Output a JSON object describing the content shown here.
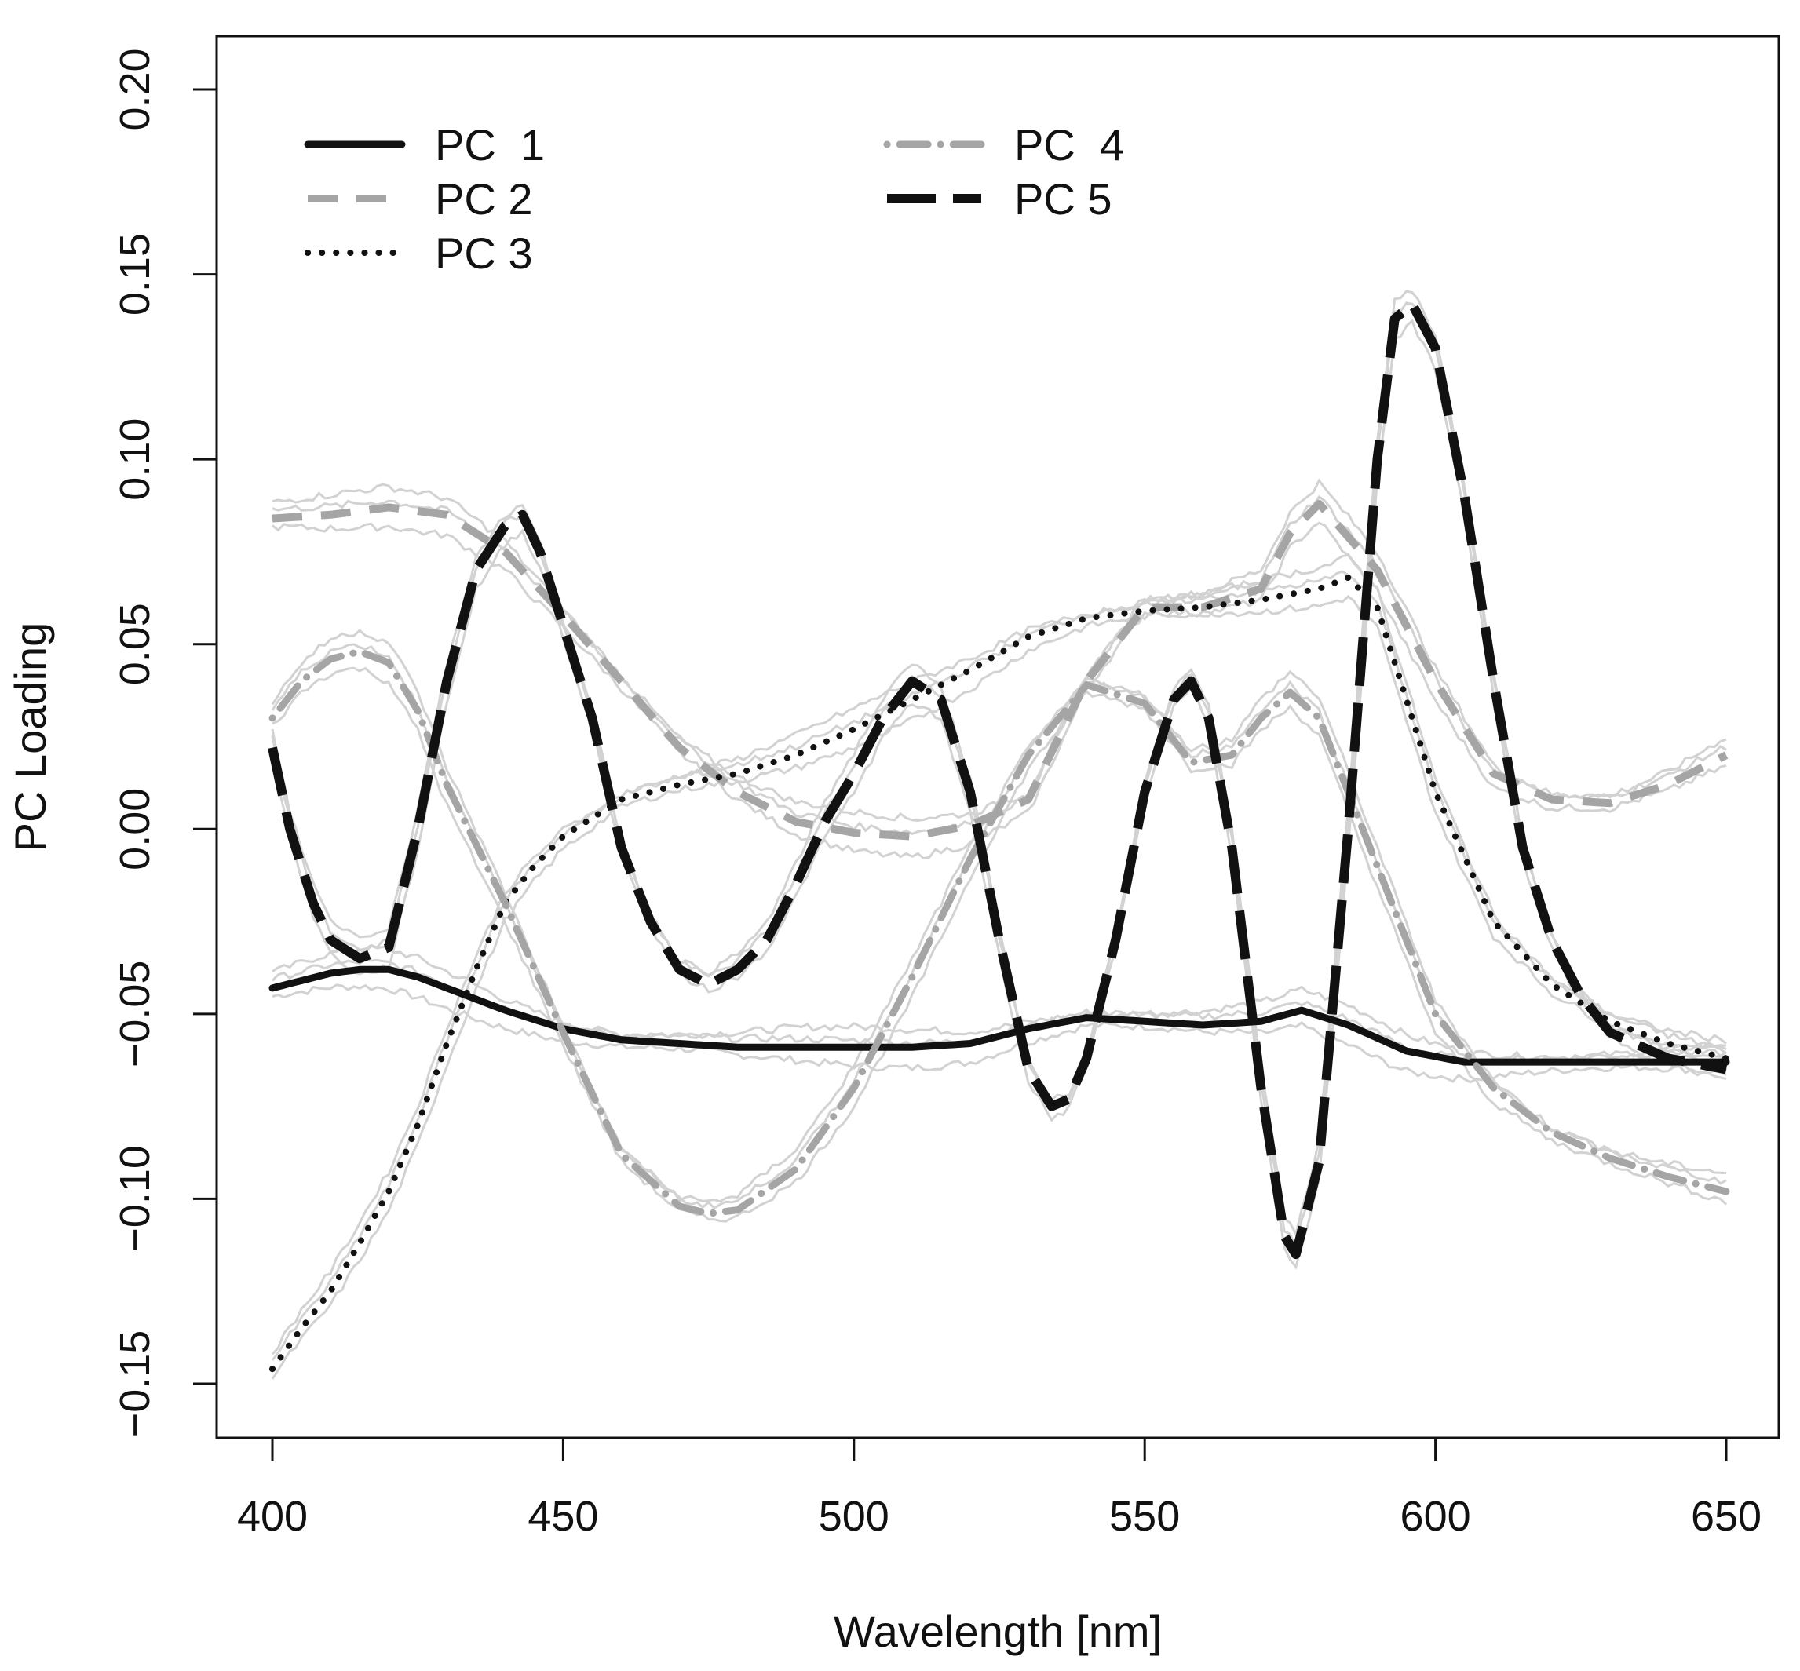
{
  "chart_data": {
    "type": "line",
    "title": "",
    "xlabel": "Wavelength [nm]",
    "ylabel": "PC Loading",
    "xlim": [
      400,
      650
    ],
    "ylim": [
      -0.15,
      0.2
    ],
    "xticks": [
      400,
      450,
      500,
      550,
      600,
      650
    ],
    "xtick_labels": [
      "400",
      "450",
      "500",
      "550",
      "600",
      "650"
    ],
    "yticks": [
      -0.15,
      -0.1,
      -0.05,
      0.0,
      0.05,
      0.1,
      0.15,
      0.2
    ],
    "ytick_labels": [
      "−0.15",
      "−0.10",
      "−0.05",
      "0.00",
      "0.05",
      "0.10",
      "0.15",
      "0.20"
    ],
    "grid": false,
    "legend_position": "top-left",
    "band_color": "#d2d2d2",
    "series": [
      {
        "name": "PC  1",
        "style": "solid",
        "color": "#111111",
        "x": [
          400,
          405,
          410,
          415,
          420,
          425,
          430,
          435,
          440,
          450,
          460,
          470,
          480,
          490,
          500,
          510,
          520,
          530,
          540,
          550,
          560,
          570,
          577,
          585,
          595,
          605,
          615,
          625,
          640,
          650
        ],
        "y": [
          -0.043,
          -0.041,
          -0.039,
          -0.038,
          -0.038,
          -0.04,
          -0.043,
          -0.046,
          -0.049,
          -0.054,
          -0.057,
          -0.058,
          -0.059,
          -0.059,
          -0.059,
          -0.059,
          -0.058,
          -0.054,
          -0.051,
          -0.052,
          -0.053,
          -0.052,
          -0.049,
          -0.053,
          -0.06,
          -0.063,
          -0.063,
          -0.063,
          -0.063,
          -0.063
        ]
      },
      {
        "name": "PC 2",
        "style": "dashed",
        "color": "#a5a5a5",
        "x": [
          400,
          410,
          420,
          430,
          440,
          450,
          460,
          470,
          480,
          490,
          500,
          510,
          520,
          530,
          540,
          550,
          560,
          570,
          575,
          580,
          590,
          600,
          610,
          620,
          630,
          640,
          650
        ],
        "y": [
          0.084,
          0.085,
          0.087,
          0.085,
          0.075,
          0.058,
          0.04,
          0.022,
          0.01,
          0.002,
          -0.001,
          -0.002,
          0.001,
          0.008,
          0.04,
          0.06,
          0.06,
          0.065,
          0.08,
          0.088,
          0.07,
          0.04,
          0.015,
          0.008,
          0.007,
          0.012,
          0.02
        ]
      },
      {
        "name": "PC 3",
        "style": "dotted",
        "color": "#111111",
        "x": [
          400,
          405,
          410,
          415,
          420,
          425,
          430,
          435,
          440,
          445,
          450,
          460,
          470,
          480,
          490,
          500,
          510,
          520,
          530,
          540,
          550,
          560,
          570,
          580,
          585,
          590,
          600,
          610,
          620,
          630,
          640,
          650
        ],
        "y": [
          -0.146,
          -0.135,
          -0.125,
          -0.112,
          -0.098,
          -0.08,
          -0.058,
          -0.038,
          -0.02,
          -0.01,
          -0.002,
          0.008,
          0.012,
          0.015,
          0.02,
          0.027,
          0.035,
          0.043,
          0.052,
          0.057,
          0.059,
          0.06,
          0.062,
          0.065,
          0.068,
          0.06,
          0.01,
          -0.025,
          -0.042,
          -0.052,
          -0.058,
          -0.062
        ]
      },
      {
        "name": "PC  4",
        "style": "dotdash",
        "color": "#a5a5a5",
        "x": [
          400,
          405,
          410,
          415,
          420,
          425,
          430,
          440,
          450,
          460,
          470,
          475,
          480,
          490,
          500,
          510,
          520,
          530,
          540,
          550,
          558,
          565,
          570,
          575,
          580,
          590,
          600,
          610,
          620,
          630,
          640,
          650
        ],
        "y": [
          0.03,
          0.04,
          0.046,
          0.048,
          0.045,
          0.032,
          0.012,
          -0.02,
          -0.055,
          -0.088,
          -0.102,
          -0.104,
          -0.103,
          -0.092,
          -0.07,
          -0.04,
          -0.008,
          0.02,
          0.039,
          0.034,
          0.018,
          0.02,
          0.03,
          0.037,
          0.03,
          -0.01,
          -0.05,
          -0.07,
          -0.082,
          -0.089,
          -0.094,
          -0.098
        ]
      },
      {
        "name": "PC 5",
        "style": "longdash",
        "color": "#111111",
        "x": [
          400,
          403,
          407,
          410,
          415,
          420,
          425,
          430,
          435,
          440,
          443,
          446,
          450,
          455,
          460,
          465,
          470,
          475,
          480,
          485,
          490,
          495,
          500,
          505,
          510,
          515,
          520,
          525,
          530,
          534,
          537,
          540,
          545,
          550,
          555,
          558,
          561,
          565,
          570,
          574,
          576,
          580,
          585,
          590,
          593,
          596,
          600,
          605,
          610,
          615,
          620,
          625,
          630,
          640,
          650
        ],
        "y": [
          0.022,
          0.0,
          -0.02,
          -0.03,
          -0.035,
          -0.032,
          0.0,
          0.04,
          0.07,
          0.082,
          0.085,
          0.075,
          0.055,
          0.03,
          -0.005,
          -0.025,
          -0.038,
          -0.042,
          -0.038,
          -0.03,
          -0.015,
          0.002,
          0.015,
          0.03,
          0.04,
          0.035,
          0.01,
          -0.03,
          -0.065,
          -0.075,
          -0.073,
          -0.062,
          -0.03,
          0.01,
          0.035,
          0.04,
          0.03,
          -0.005,
          -0.07,
          -0.11,
          -0.115,
          -0.09,
          0.0,
          0.1,
          0.138,
          0.142,
          0.13,
          0.09,
          0.04,
          -0.005,
          -0.03,
          -0.045,
          -0.055,
          -0.062,
          -0.065
        ]
      }
    ]
  }
}
